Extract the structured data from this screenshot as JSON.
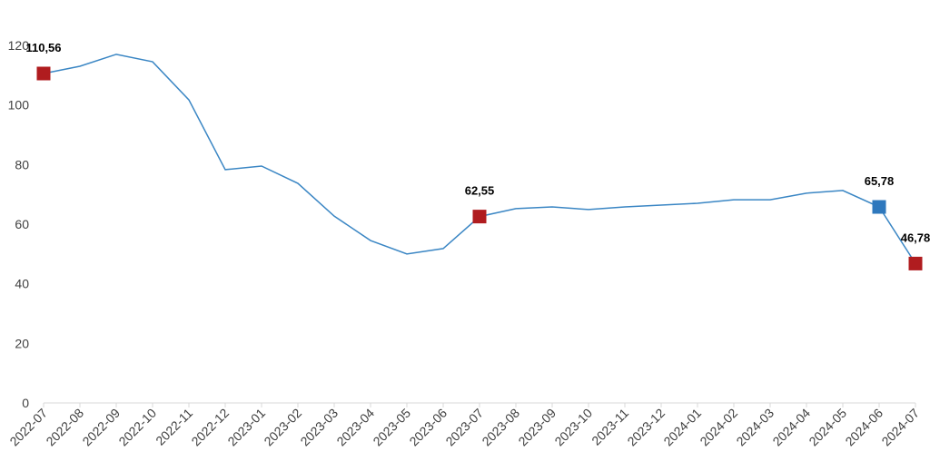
{
  "chart_data": {
    "type": "line",
    "categories": [
      "2022-07",
      "2022-08",
      "2022-09",
      "2022-10",
      "2022-11",
      "2022-12",
      "2023-01",
      "2023-02",
      "2023-03",
      "2023-04",
      "2023-05",
      "2023-06",
      "2023-07",
      "2023-08",
      "2023-09",
      "2023-10",
      "2023-11",
      "2023-12",
      "2024-01",
      "2024-02",
      "2024-03",
      "2024-04",
      "2024-05",
      "2024-06",
      "2024-07"
    ],
    "series": [
      {
        "color": "#3a86c4",
        "values": [
          110.56,
          113,
          117,
          114.5,
          101.7,
          78.3,
          79.5,
          73.7,
          62.7,
          54.5,
          50,
          51.8,
          62.55,
          65.2,
          65.8,
          64.9,
          65.8,
          66.4,
          67,
          68.2,
          68.2,
          70.4,
          71.3,
          65.78,
          46.78
        ],
        "value_labels": [
          "110,56",
          null,
          null,
          null,
          null,
          null,
          null,
          null,
          null,
          null,
          null,
          null,
          "62,55",
          null,
          null,
          null,
          null,
          null,
          null,
          null,
          null,
          null,
          null,
          "65,78",
          "46,78"
        ],
        "marker_colors": [
          "#b01c1f",
          null,
          null,
          null,
          null,
          null,
          null,
          null,
          null,
          null,
          null,
          null,
          "#b01c1f",
          null,
          null,
          null,
          null,
          null,
          null,
          null,
          null,
          null,
          null,
          "#2e78bd",
          "#b01c1f"
        ]
      }
    ],
    "ylim": [
      0,
      120
    ],
    "yticks": [
      0,
      20,
      40,
      60,
      80,
      100,
      120
    ],
    "grid": false
  }
}
